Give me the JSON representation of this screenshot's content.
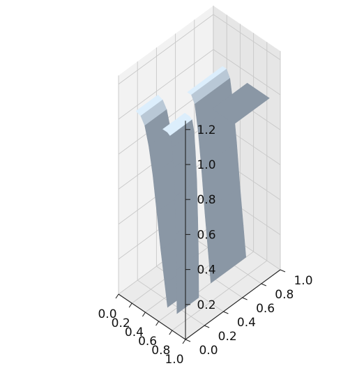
{
  "chart_data": {
    "type": "surface",
    "title": "",
    "xlabel": "",
    "ylabel": "",
    "zlabel": "",
    "xlim": [
      0,
      1
    ],
    "ylim": [
      0,
      1
    ],
    "zlim": [
      0,
      1.25
    ],
    "grid": true,
    "x_ticks": [
      "0.0",
      "0.2",
      "0.4",
      "0.6",
      "0.8",
      "1.0"
    ],
    "y_ticks": [
      "0.0",
      "0.2",
      "0.4",
      "0.6",
      "0.8",
      "1.0"
    ],
    "z_ticks": [
      "0.2",
      "0.4",
      "0.6",
      "0.8",
      "1.0",
      "1.2"
    ],
    "surfaces": [
      {
        "name": "",
        "profile": [
          [
            0.05,
            1.0
          ],
          [
            0.12,
            0.99
          ],
          [
            0.18,
            0.95
          ],
          [
            0.24,
            0.85
          ],
          [
            0.3,
            0.7
          ],
          [
            0.36,
            0.5
          ],
          [
            0.42,
            0.3
          ],
          [
            0.48,
            0.12
          ],
          [
            0.52,
            0.0
          ]
        ],
        "y_range": [
          0.15,
          0.38
        ]
      },
      {
        "name": "",
        "profile": [
          [
            0.25,
            1.0
          ],
          [
            0.31,
            1.0
          ],
          [
            0.36,
            0.96
          ],
          [
            0.41,
            0.82
          ],
          [
            0.46,
            0.62
          ],
          [
            0.51,
            0.38
          ],
          [
            0.56,
            0.17
          ],
          [
            0.6,
            0.0
          ]
        ],
        "y_range": [
          0.55,
          0.92
        ]
      },
      {
        "name": "",
        "profile": [
          [
            0.45,
            1.0
          ],
          [
            0.52,
            1.0
          ],
          [
            0.56,
            0.99
          ],
          [
            0.59,
            0.93
          ],
          [
            0.61,
            0.82
          ],
          [
            0.63,
            0.66
          ],
          [
            0.645,
            0.45
          ],
          [
            0.655,
            0.25
          ],
          [
            0.66,
            0.0
          ]
        ],
        "y_range": [
          0.15,
          0.38
        ]
      },
      {
        "name": "",
        "plane": {
          "x_range": [
            0.62,
            0.95
          ],
          "y_range": [
            0.55,
            0.92
          ],
          "z": 1.0
        }
      }
    ],
    "colors": {
      "surface": "#8a97a5",
      "highlight": "#dceefc",
      "pane_left": "#f2f2f2",
      "pane_back": "#e6e6e6",
      "pane_floor": "#ebebeb",
      "grid": "#c8c8c8"
    }
  }
}
